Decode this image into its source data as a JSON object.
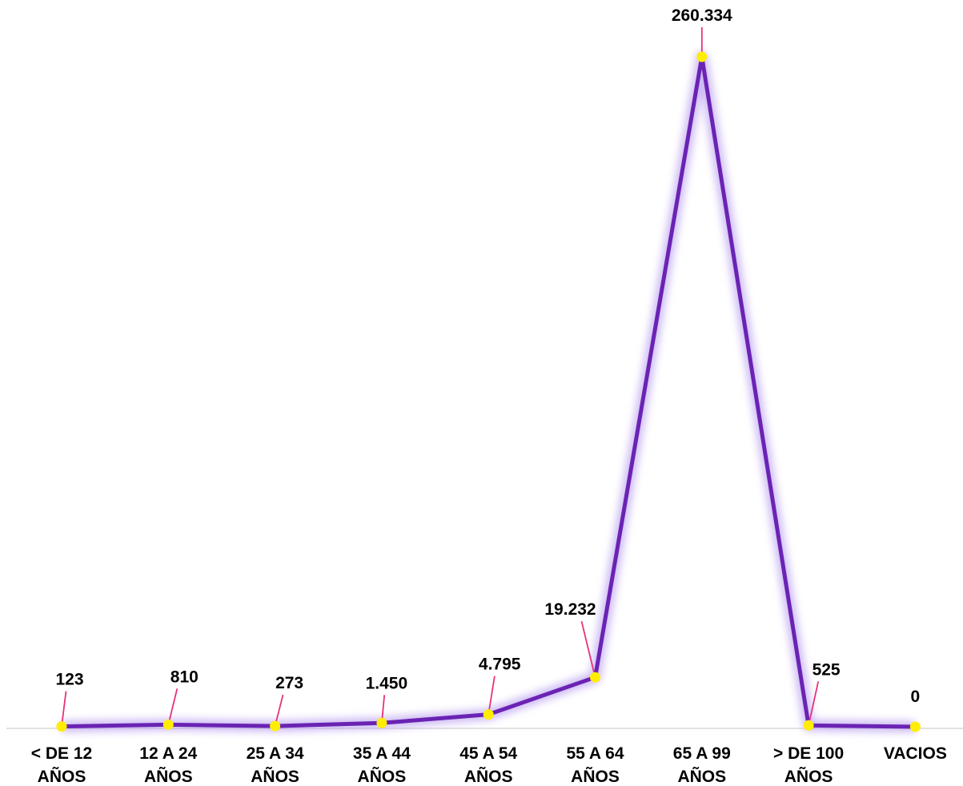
{
  "chart_data": {
    "type": "line",
    "categories": [
      [
        "< DE 12",
        "AÑOS"
      ],
      [
        "12 A 24",
        "AÑOS"
      ],
      [
        "25 A 34",
        "AÑOS"
      ],
      [
        "35 A 44",
        "AÑOS"
      ],
      [
        "45 A 54",
        "AÑOS"
      ],
      [
        "55 A 64",
        "AÑOS"
      ],
      [
        "65 A 99",
        "AÑOS"
      ],
      [
        "> DE 100",
        "AÑOS"
      ],
      [
        "VACIOS"
      ]
    ],
    "values": [
      123,
      810,
      273,
      1450,
      4795,
      19232,
      260334,
      525,
      0
    ],
    "data_labels": [
      "123",
      "810",
      "273",
      "1.450",
      "4.795",
      "19.232",
      "260.334",
      "525",
      "0"
    ],
    "ylim": [
      0,
      260334
    ],
    "grid": false,
    "legend": "none",
    "colors": {
      "line": "#6a23b3",
      "glow": "#b79cf0",
      "marker": "#ffee00",
      "leader": "#e8327a",
      "axis": "#d9d9d9"
    }
  }
}
